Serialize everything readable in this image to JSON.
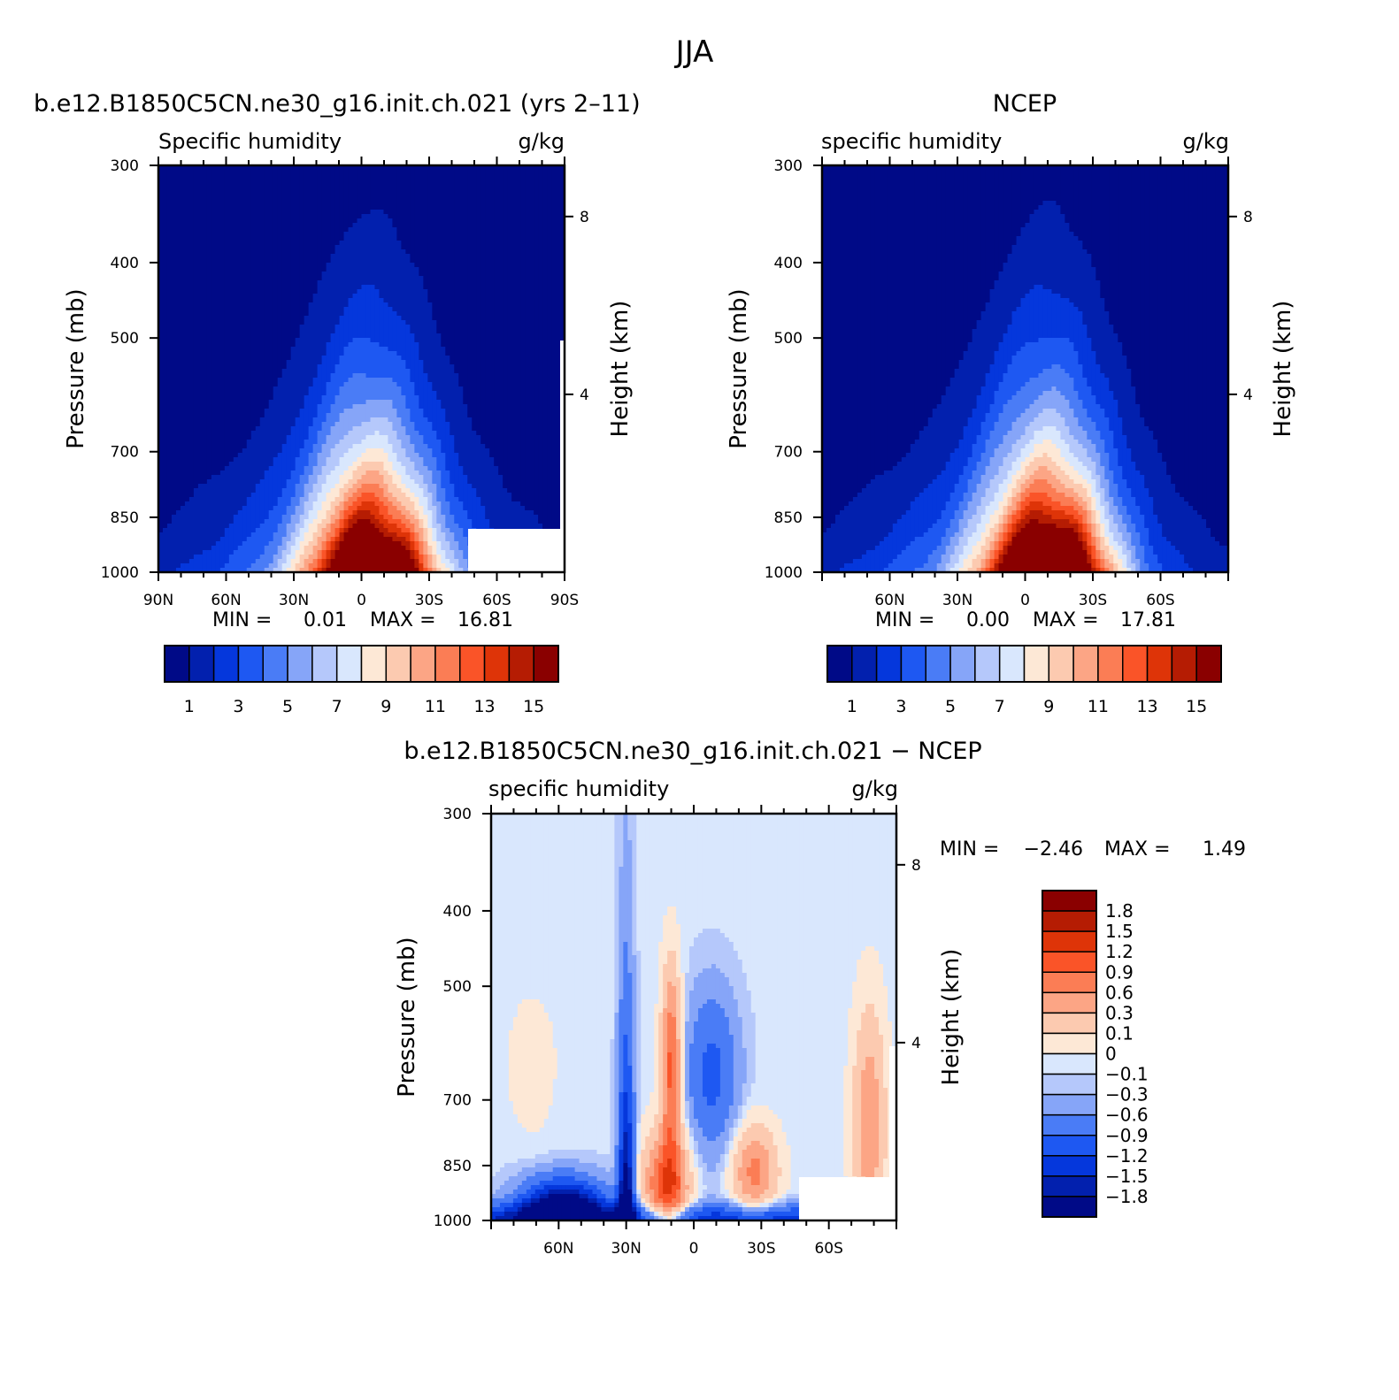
{
  "figure_title": "JJA",
  "panels": {
    "model": {
      "title": "b.e12.B1850C5CN.ne30_g16.init.ch.021 (yrs 2–11)",
      "left_label": "Specific humidity",
      "right_label": "g/kg",
      "ylabel": "Pressure (mb)",
      "y2label": "Height (km)",
      "min_label": "MIN =",
      "min_value": "0.01",
      "max_label": "MAX =",
      "max_value": "16.81"
    },
    "ncep": {
      "title": "NCEP",
      "left_label": "specific humidity",
      "right_label": "g/kg",
      "ylabel": "Pressure (mb)",
      "y2label": "Height (km)",
      "min_label": "MIN =",
      "min_value": "0.00",
      "max_label": "MAX =",
      "max_value": "17.81"
    },
    "diff": {
      "title": "b.e12.B1850C5CN.ne30_g16.init.ch.021 − NCEP",
      "left_label": "specific humidity",
      "right_label": "g/kg",
      "ylabel": "Pressure (mb)",
      "y2label": "Height (km)",
      "min_label": "MIN =",
      "min_value": "−2.46",
      "max_label": "MAX =",
      "max_value": "1.49"
    }
  },
  "chart_data": [
    {
      "type": "heatmap",
      "title": "b.e12.B1850C5CN.ne30_g16.init.ch.021 (yrs 2–11)",
      "variable": "Specific humidity",
      "units": "g/kg",
      "xlabel": "",
      "ylabel": "Pressure (mb)",
      "y2label": "Height (km)",
      "x_ticks": [
        "90N",
        "60N",
        "30N",
        "0",
        "30S",
        "60S",
        "90S"
      ],
      "y_ticks": [
        "300",
        "400",
        "500",
        "700",
        "850",
        "1000"
      ],
      "y2_ticks": [
        "8",
        "4"
      ],
      "xlim": [
        90,
        -90
      ],
      "ylim": [
        1000,
        300
      ],
      "y_scale": "log",
      "min": 0.01,
      "max": 16.81,
      "peak_latitude": -5,
      "levels": [
        0,
        1,
        2,
        3,
        4,
        5,
        6,
        7,
        8,
        9,
        10,
        11,
        12,
        13,
        14,
        15,
        16
      ],
      "colorbar_ticks": [
        "1",
        "3",
        "5",
        "7",
        "9",
        "11",
        "13",
        "15"
      ],
      "missing_region": "south polar near-surface"
    },
    {
      "type": "heatmap",
      "title": "NCEP",
      "variable": "specific humidity",
      "units": "g/kg",
      "xlabel": "",
      "ylabel": "Pressure (mb)",
      "y2label": "Height (km)",
      "x_ticks": [
        "60N",
        "30N",
        "0",
        "30S",
        "60S"
      ],
      "y_ticks": [
        "300",
        "400",
        "500",
        "700",
        "850",
        "1000"
      ],
      "y2_ticks": [
        "8",
        "4"
      ],
      "xlim": [
        90,
        -90
      ],
      "ylim": [
        1000,
        300
      ],
      "y_scale": "log",
      "min": 0.0,
      "max": 17.81,
      "peak_latitude": -10,
      "levels": [
        0,
        1,
        2,
        3,
        4,
        5,
        6,
        7,
        8,
        9,
        10,
        11,
        12,
        13,
        14,
        15,
        16
      ],
      "colorbar_ticks": [
        "1",
        "3",
        "5",
        "7",
        "9",
        "11",
        "13",
        "15"
      ]
    },
    {
      "type": "heatmap",
      "title": "b.e12.B1850C5CN.ne30_g16.init.ch.021 − NCEP",
      "variable": "specific humidity",
      "units": "g/kg",
      "xlabel": "",
      "ylabel": "Pressure (mb)",
      "y2label": "Height (km)",
      "x_ticks": [
        "60N",
        "30N",
        "0",
        "30S",
        "60S"
      ],
      "y_ticks": [
        "300",
        "400",
        "500",
        "700",
        "850",
        "1000"
      ],
      "y2_ticks": [
        "8",
        "4"
      ],
      "xlim": [
        90,
        -90
      ],
      "ylim": [
        1000,
        300
      ],
      "y_scale": "log",
      "min": -2.46,
      "max": 1.49,
      "levels": [
        -1.8,
        -1.5,
        -1.2,
        -0.9,
        -0.6,
        -0.3,
        -0.1,
        0,
        0.1,
        0.3,
        0.6,
        0.9,
        1.2,
        1.5,
        1.8
      ],
      "colorbar_ticks": [
        "1.8",
        "1.5",
        "1.2",
        "0.9",
        "0.6",
        "0.3",
        "0.1",
        "0",
        "−0.1",
        "−0.3",
        "−0.6",
        "−0.9",
        "−1.2",
        "−1.5",
        "−1.8"
      ],
      "missing_region": "south polar near-surface"
    }
  ],
  "colors": {
    "abs_palette": [
      "#000A87",
      "#0220AE",
      "#0537DC",
      "#1E58F2",
      "#4A7CF6",
      "#86A5F8",
      "#B5C8FB",
      "#D9E7FD",
      "#FDE8D6",
      "#FCCAB0",
      "#FCA585",
      "#FB7D55",
      "#FA5428",
      "#DE3408",
      "#B51C03",
      "#8A0000"
    ],
    "diff_palette": [
      "#000A87",
      "#0220AE",
      "#0537DC",
      "#1E58F2",
      "#4A7CF6",
      "#86A5F8",
      "#B5C8FB",
      "#D9E7FD",
      "#FDE8D6",
      "#FCCAB0",
      "#FCA585",
      "#FB7D55",
      "#FA5428",
      "#DE3408",
      "#B51C03",
      "#8A0000"
    ]
  }
}
